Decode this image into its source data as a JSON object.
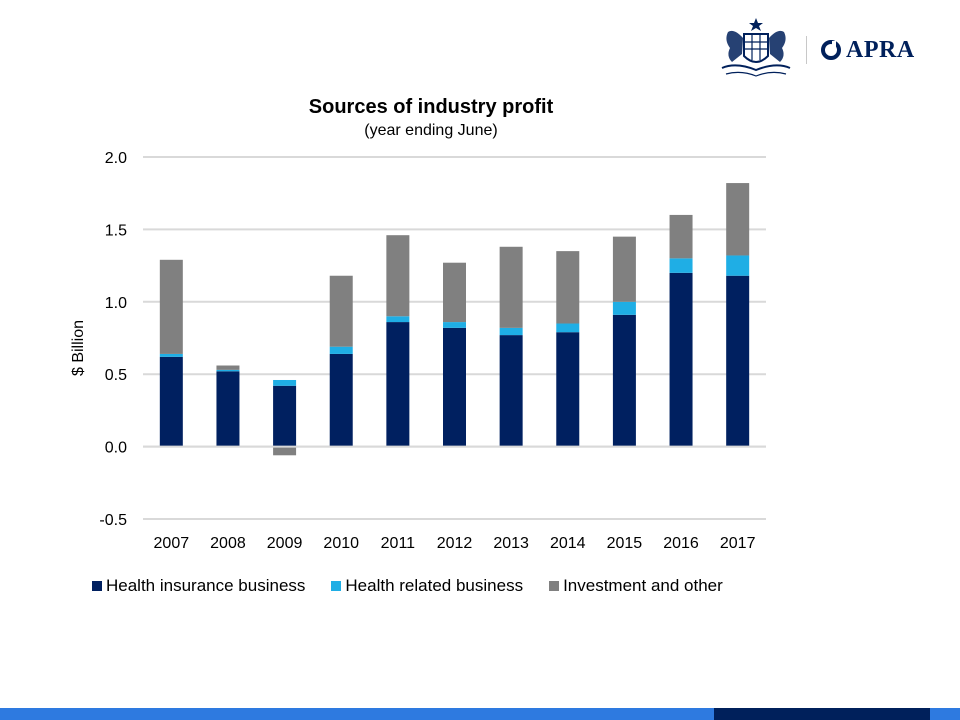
{
  "branding": {
    "logo_text": "APRA",
    "crest_icon": "coat-of-arms-icon",
    "logo_mark_icon": "apra-ring-icon",
    "navy": "#00205b"
  },
  "footer": {
    "light_color": "#2e7ae0",
    "dark_color": "#00205b",
    "accent_color": "#2e7ae0"
  },
  "chart_data": {
    "type": "bar",
    "stacked": true,
    "title": "Sources of industry profit",
    "subtitle": "(year ending June)",
    "xlabel": "",
    "ylabel": "$ Billion",
    "ylim": [
      -0.5,
      2.0
    ],
    "yticks": [
      -0.5,
      0.0,
      0.5,
      1.0,
      1.5,
      2.0
    ],
    "ytick_labels": [
      "-0.5",
      "0.0",
      "0.5",
      "1.0",
      "1.5",
      "2.0"
    ],
    "grid": true,
    "legend_position": "bottom",
    "categories": [
      "2007",
      "2008",
      "2009",
      "2010",
      "2011",
      "2012",
      "2013",
      "2014",
      "2015",
      "2016",
      "2017"
    ],
    "series": [
      {
        "name": "Health insurance business",
        "color": "#002060",
        "values": [
          0.62,
          0.52,
          0.42,
          0.64,
          0.86,
          0.82,
          0.77,
          0.79,
          0.91,
          1.2,
          1.18
        ]
      },
      {
        "name": "Health related business",
        "color": "#1faee5",
        "values": [
          0.02,
          0.01,
          0.04,
          0.05,
          0.04,
          0.04,
          0.05,
          0.06,
          0.09,
          0.1,
          0.14
        ]
      },
      {
        "name": "Investment and other",
        "color": "#808080",
        "values": [
          0.65,
          0.03,
          -0.06,
          0.49,
          0.56,
          0.41,
          0.56,
          0.5,
          0.45,
          0.3,
          0.5
        ]
      }
    ]
  }
}
